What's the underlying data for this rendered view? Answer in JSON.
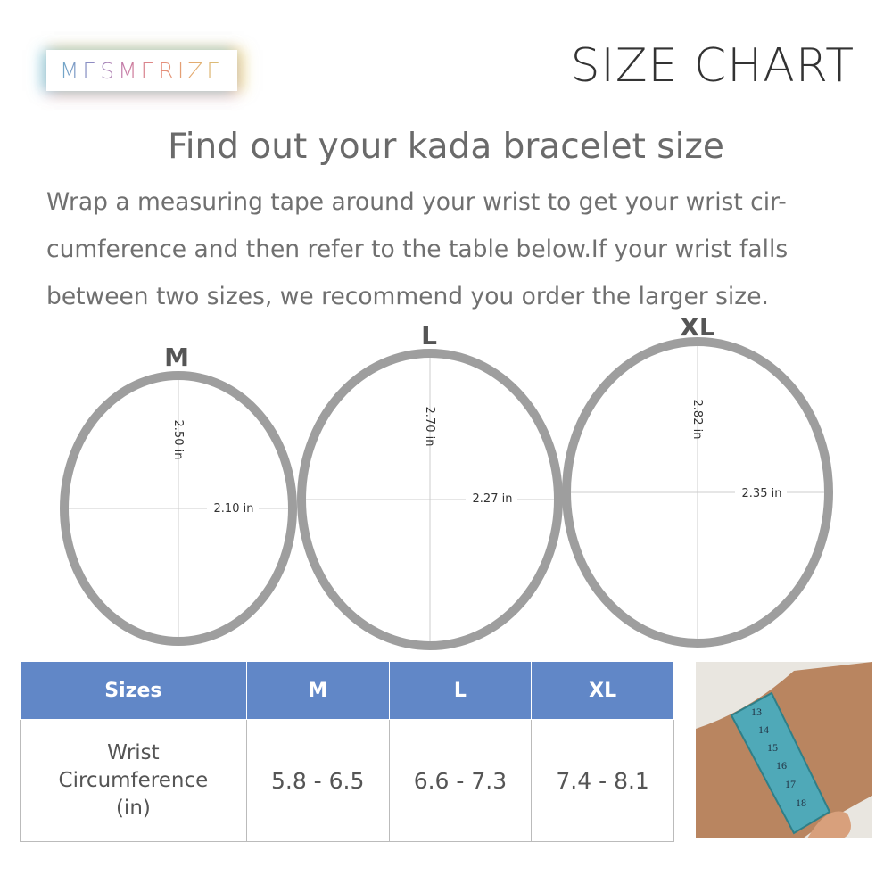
{
  "brand": {
    "logo_text": "MESMERIZE"
  },
  "title": "SIZE CHART",
  "heading": "Find out your kada bracelet size",
  "description": "Wrap a measuring tape around your wrist to get your wrist cir-cumference and then refer to the table below.If your wrist falls between two sizes, we recommend you order the larger size.",
  "bracelets": [
    {
      "size": "M",
      "height": "2.50 in",
      "width": "2.10 in"
    },
    {
      "size": "L",
      "height": "2.70 in",
      "width": "2.27 in"
    },
    {
      "size": "XL",
      "height": "2.82 in",
      "width": "2.35 in"
    }
  ],
  "table": {
    "headers": [
      "Sizes",
      "M",
      "L",
      "XL"
    ],
    "row_label": [
      "Wrist",
      "Circumference",
      "(in)"
    ],
    "values": [
      "5.8 - 6.5",
      "6.6 - 7.3",
      "7.4 - 8.1"
    ]
  },
  "colors": {
    "header": "#6187c7",
    "ring": "#9e9e9e"
  },
  "photo": {
    "tape_numbers": [
      "13",
      "14",
      "15",
      "16",
      "17",
      "18"
    ]
  }
}
